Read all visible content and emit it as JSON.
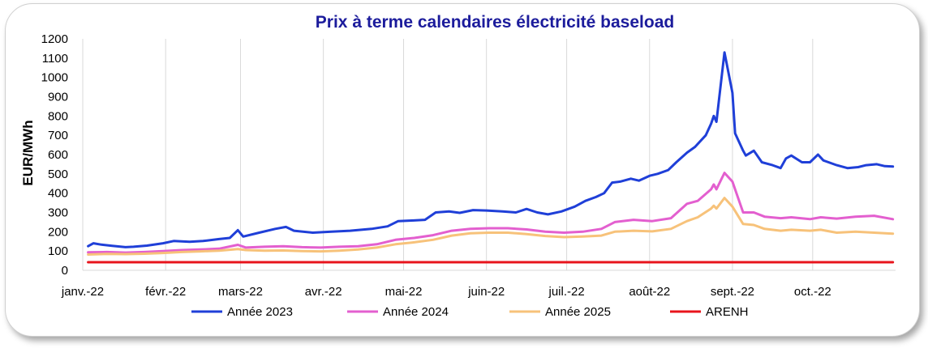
{
  "chart_data": {
    "type": "line",
    "title": "Prix à terme calendaires électricité baseload",
    "ylabel": "EUR/MWh",
    "xlabel": "",
    "ylim": [
      0,
      1200
    ],
    "y_ticks": [
      0,
      100,
      200,
      300,
      400,
      500,
      600,
      700,
      800,
      900,
      1000,
      1100,
      1200
    ],
    "x_tick_labels": [
      "janv.-22",
      "févr.-22",
      "mars-22",
      "avr.-22",
      "mai-22",
      "juin-22",
      "juil.-22",
      "août-22",
      "sept.-22",
      "oct.-22"
    ],
    "grid": "vertical",
    "legend_position": "bottom",
    "series": [
      {
        "name": "Année 2023",
        "color": "#1f3fd8",
        "points": [
          [
            "2022-01-03",
            125
          ],
          [
            "2022-01-05",
            140
          ],
          [
            "2022-01-08",
            133
          ],
          [
            "2022-01-12",
            127
          ],
          [
            "2022-01-17",
            120
          ],
          [
            "2022-01-20",
            122
          ],
          [
            "2022-01-25",
            128
          ],
          [
            "2022-01-31",
            140
          ],
          [
            "2022-02-04",
            152
          ],
          [
            "2022-02-10",
            148
          ],
          [
            "2022-02-15",
            152
          ],
          [
            "2022-02-21",
            162
          ],
          [
            "2022-02-25",
            168
          ],
          [
            "2022-02-28",
            208
          ],
          [
            "2022-03-02",
            175
          ],
          [
            "2022-03-08",
            195
          ],
          [
            "2022-03-14",
            215
          ],
          [
            "2022-03-18",
            225
          ],
          [
            "2022-03-21",
            205
          ],
          [
            "2022-03-28",
            195
          ],
          [
            "2022-04-04",
            200
          ],
          [
            "2022-04-11",
            205
          ],
          [
            "2022-04-19",
            215
          ],
          [
            "2022-04-25",
            228
          ],
          [
            "2022-04-29",
            255
          ],
          [
            "2022-05-04",
            258
          ],
          [
            "2022-05-09",
            262
          ],
          [
            "2022-05-13",
            300
          ],
          [
            "2022-05-18",
            305
          ],
          [
            "2022-05-22",
            298
          ],
          [
            "2022-05-27",
            312
          ],
          [
            "2022-06-01",
            310
          ],
          [
            "2022-06-07",
            305
          ],
          [
            "2022-06-12",
            300
          ],
          [
            "2022-06-16",
            318
          ],
          [
            "2022-06-20",
            300
          ],
          [
            "2022-06-24",
            290
          ],
          [
            "2022-06-29",
            305
          ],
          [
            "2022-07-04",
            330
          ],
          [
            "2022-07-08",
            360
          ],
          [
            "2022-07-12",
            380
          ],
          [
            "2022-07-15",
            400
          ],
          [
            "2022-07-18",
            455
          ],
          [
            "2022-07-21",
            460
          ],
          [
            "2022-07-25",
            475
          ],
          [
            "2022-07-28",
            465
          ],
          [
            "2022-08-01",
            490
          ],
          [
            "2022-08-04",
            500
          ],
          [
            "2022-08-08",
            520
          ],
          [
            "2022-08-11",
            560
          ],
          [
            "2022-08-15",
            610
          ],
          [
            "2022-08-18",
            640
          ],
          [
            "2022-08-22",
            700
          ],
          [
            "2022-08-24",
            760
          ],
          [
            "2022-08-25",
            800
          ],
          [
            "2022-08-26",
            770
          ],
          [
            "2022-08-29",
            1130
          ],
          [
            "2022-09-01",
            920
          ],
          [
            "2022-09-02",
            710
          ],
          [
            "2022-09-05",
            620
          ],
          [
            "2022-09-06",
            595
          ],
          [
            "2022-09-09",
            620
          ],
          [
            "2022-09-12",
            560
          ],
          [
            "2022-09-16",
            545
          ],
          [
            "2022-09-19",
            530
          ],
          [
            "2022-09-21",
            580
          ],
          [
            "2022-09-23",
            595
          ],
          [
            "2022-09-27",
            560
          ],
          [
            "2022-09-30",
            560
          ],
          [
            "2022-10-03",
            600
          ],
          [
            "2022-10-05",
            570
          ],
          [
            "2022-10-10",
            545
          ],
          [
            "2022-10-14",
            530
          ],
          [
            "2022-10-18",
            535
          ],
          [
            "2022-10-21",
            545
          ],
          [
            "2022-10-25",
            550
          ],
          [
            "2022-10-28",
            540
          ],
          [
            "2022-10-31",
            538
          ]
        ]
      },
      {
        "name": "Année 2024",
        "color": "#e35fcf",
        "points": [
          [
            "2022-01-03",
            93
          ],
          [
            "2022-01-10",
            95
          ],
          [
            "2022-01-17",
            92
          ],
          [
            "2022-01-24",
            95
          ],
          [
            "2022-01-31",
            100
          ],
          [
            "2022-02-07",
            105
          ],
          [
            "2022-02-14",
            108
          ],
          [
            "2022-02-21",
            112
          ],
          [
            "2022-02-28",
            132
          ],
          [
            "2022-03-03",
            118
          ],
          [
            "2022-03-10",
            122
          ],
          [
            "2022-03-17",
            125
          ],
          [
            "2022-03-24",
            120
          ],
          [
            "2022-03-31",
            118
          ],
          [
            "2022-04-07",
            122
          ],
          [
            "2022-04-14",
            125
          ],
          [
            "2022-04-21",
            135
          ],
          [
            "2022-04-28",
            158
          ],
          [
            "2022-05-05",
            168
          ],
          [
            "2022-05-12",
            182
          ],
          [
            "2022-05-19",
            205
          ],
          [
            "2022-05-26",
            215
          ],
          [
            "2022-06-02",
            218
          ],
          [
            "2022-06-09",
            218
          ],
          [
            "2022-06-16",
            212
          ],
          [
            "2022-06-23",
            200
          ],
          [
            "2022-06-30",
            195
          ],
          [
            "2022-07-07",
            200
          ],
          [
            "2022-07-14",
            215
          ],
          [
            "2022-07-19",
            250
          ],
          [
            "2022-07-26",
            262
          ],
          [
            "2022-08-02",
            255
          ],
          [
            "2022-08-09",
            270
          ],
          [
            "2022-08-15",
            345
          ],
          [
            "2022-08-19",
            360
          ],
          [
            "2022-08-24",
            420
          ],
          [
            "2022-08-25",
            445
          ],
          [
            "2022-08-26",
            420
          ],
          [
            "2022-08-29",
            505
          ],
          [
            "2022-09-01",
            460
          ],
          [
            "2022-09-05",
            300
          ],
          [
            "2022-09-09",
            300
          ],
          [
            "2022-09-13",
            278
          ],
          [
            "2022-09-19",
            270
          ],
          [
            "2022-09-23",
            275
          ],
          [
            "2022-09-30",
            265
          ],
          [
            "2022-10-04",
            275
          ],
          [
            "2022-10-10",
            268
          ],
          [
            "2022-10-17",
            278
          ],
          [
            "2022-10-24",
            283
          ],
          [
            "2022-10-31",
            265
          ]
        ]
      },
      {
        "name": "Année 2025",
        "color": "#f7c27a",
        "points": [
          [
            "2022-01-03",
            82
          ],
          [
            "2022-01-10",
            85
          ],
          [
            "2022-01-17",
            84
          ],
          [
            "2022-01-24",
            86
          ],
          [
            "2022-01-31",
            90
          ],
          [
            "2022-02-07",
            95
          ],
          [
            "2022-02-14",
            98
          ],
          [
            "2022-02-21",
            102
          ],
          [
            "2022-02-28",
            110
          ],
          [
            "2022-03-03",
            105
          ],
          [
            "2022-03-10",
            102
          ],
          [
            "2022-03-17",
            103
          ],
          [
            "2022-03-24",
            100
          ],
          [
            "2022-03-31",
            98
          ],
          [
            "2022-04-07",
            102
          ],
          [
            "2022-04-14",
            108
          ],
          [
            "2022-04-21",
            118
          ],
          [
            "2022-04-28",
            135
          ],
          [
            "2022-05-05",
            145
          ],
          [
            "2022-05-12",
            158
          ],
          [
            "2022-05-19",
            180
          ],
          [
            "2022-05-26",
            192
          ],
          [
            "2022-06-02",
            195
          ],
          [
            "2022-06-09",
            195
          ],
          [
            "2022-06-16",
            188
          ],
          [
            "2022-06-23",
            178
          ],
          [
            "2022-06-30",
            172
          ],
          [
            "2022-07-07",
            175
          ],
          [
            "2022-07-14",
            180
          ],
          [
            "2022-07-19",
            200
          ],
          [
            "2022-07-26",
            205
          ],
          [
            "2022-08-02",
            202
          ],
          [
            "2022-08-09",
            215
          ],
          [
            "2022-08-15",
            255
          ],
          [
            "2022-08-19",
            275
          ],
          [
            "2022-08-24",
            320
          ],
          [
            "2022-08-25",
            335
          ],
          [
            "2022-08-26",
            320
          ],
          [
            "2022-08-29",
            375
          ],
          [
            "2022-09-01",
            330
          ],
          [
            "2022-09-05",
            240
          ],
          [
            "2022-09-09",
            235
          ],
          [
            "2022-09-13",
            215
          ],
          [
            "2022-09-19",
            205
          ],
          [
            "2022-09-23",
            210
          ],
          [
            "2022-09-30",
            205
          ],
          [
            "2022-10-04",
            210
          ],
          [
            "2022-10-10",
            195
          ],
          [
            "2022-10-17",
            200
          ],
          [
            "2022-10-24",
            195
          ],
          [
            "2022-10-31",
            190
          ]
        ]
      },
      {
        "name": "ARENH",
        "color": "#e8141c",
        "points": [
          [
            "2022-01-03",
            42
          ],
          [
            "2022-10-31",
            42
          ]
        ]
      }
    ]
  }
}
